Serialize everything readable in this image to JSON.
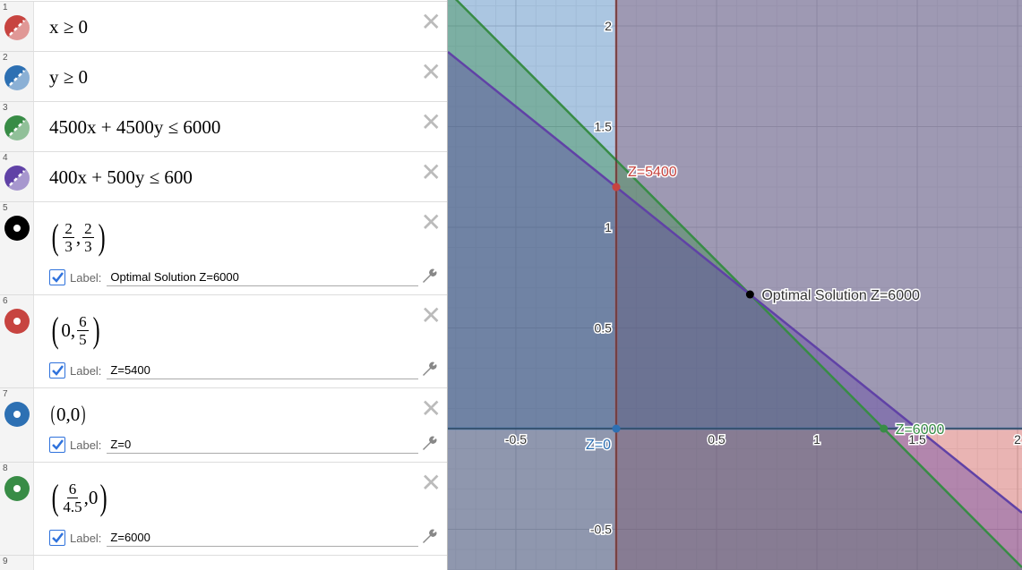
{
  "expressions": [
    {
      "index": "1",
      "kind": "inequality",
      "text": "x ≥ 0",
      "color": "#c74440"
    },
    {
      "index": "2",
      "kind": "inequality",
      "text": "y ≥ 0",
      "color": "#2d70b3"
    },
    {
      "index": "3",
      "kind": "inequality",
      "text": "4500x + 4500y ≤ 6000",
      "color": "#388c46"
    },
    {
      "index": "4",
      "kind": "inequality",
      "text": "400x + 500y ≤ 600",
      "color": "#6042a6"
    },
    {
      "index": "5",
      "kind": "point",
      "x": {
        "num": "2",
        "den": "3"
      },
      "y": {
        "num": "2",
        "den": "3"
      },
      "label_caption": "Label:",
      "label": "Optimal Solution Z=6000",
      "color": "#000000",
      "point": [
        0.6667,
        0.6667
      ]
    },
    {
      "index": "6",
      "kind": "point",
      "x": "0",
      "y": {
        "num": "6",
        "den": "5"
      },
      "label_caption": "Label:",
      "label": "Z=5400",
      "color": "#c74440",
      "point": [
        0,
        1.2
      ]
    },
    {
      "index": "7",
      "kind": "point",
      "x": "0",
      "y": "0",
      "label_caption": "Label:",
      "label": "Z=0",
      "color": "#2d70b3",
      "point": [
        0,
        0
      ]
    },
    {
      "index": "8",
      "kind": "point",
      "x": {
        "num": "6",
        "den": "4.5"
      },
      "y": "0",
      "label_caption": "Label:",
      "label": "Z=6000",
      "color": "#388c46",
      "point": [
        1.3333,
        0
      ]
    },
    {
      "index": "9",
      "kind": "empty"
    }
  ],
  "graph": {
    "xlim": [
      -0.839,
      2.022
    ],
    "ylim": [
      -0.702,
      2.129
    ],
    "xticks": [
      -0.5,
      0.5,
      1,
      1.5,
      2
    ],
    "yticks": [
      -0.5,
      0.5,
      1,
      1.5,
      2
    ]
  }
}
